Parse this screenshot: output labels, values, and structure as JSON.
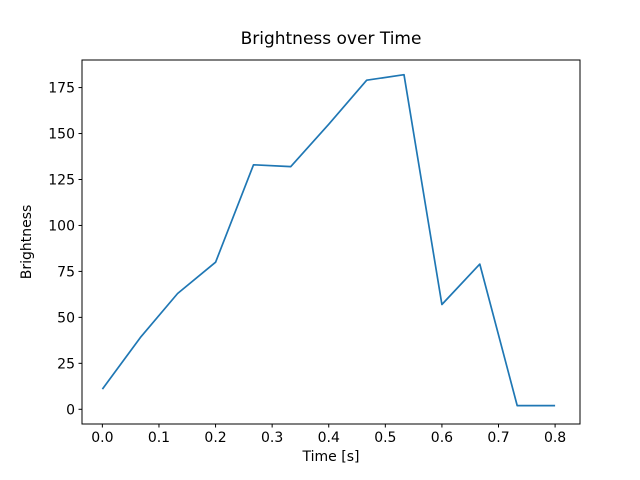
{
  "figure": {
    "background_color": "#ffffff",
    "spine_color": "#000000",
    "text_color": "#000000"
  },
  "chart_data": {
    "type": "line",
    "title": "Brightness over Time",
    "xlabel": "Time [s]",
    "ylabel": "Brightness",
    "x": [
      0.0,
      0.067,
      0.133,
      0.2,
      0.267,
      0.333,
      0.4,
      0.467,
      0.533,
      0.6,
      0.667,
      0.733,
      0.8
    ],
    "y": [
      11,
      39,
      63,
      80,
      133,
      132,
      155,
      179,
      182,
      57,
      79,
      2,
      2
    ],
    "series_name": "brightness",
    "line_color": "#1f77b4",
    "xticks": [
      0.0,
      0.1,
      0.2,
      0.3,
      0.4,
      0.5,
      0.6,
      0.7,
      0.8
    ],
    "xtick_labels": [
      "0.0",
      "0.1",
      "0.2",
      "0.3",
      "0.4",
      "0.5",
      "0.6",
      "0.7",
      "0.8"
    ],
    "yticks": [
      0,
      25,
      50,
      75,
      100,
      125,
      150,
      175
    ],
    "ytick_labels": [
      "0",
      "25",
      "50",
      "75",
      "100",
      "125",
      "150",
      "175"
    ],
    "xlim": [
      -0.036,
      0.844
    ],
    "ylim": [
      -8,
      190
    ],
    "grid": false,
    "legend": null
  }
}
